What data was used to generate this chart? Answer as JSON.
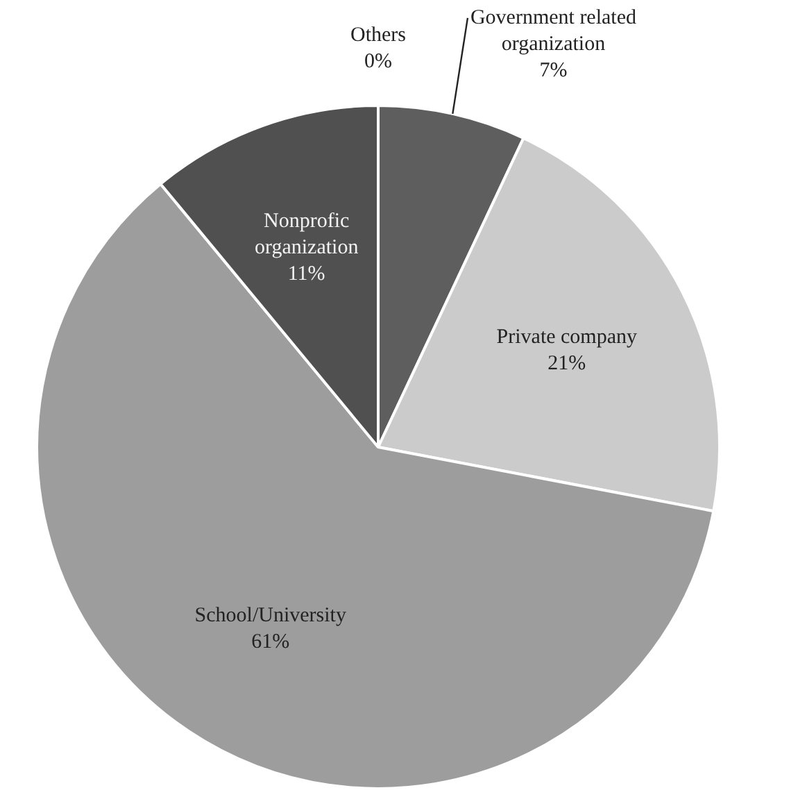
{
  "chart_data": {
    "type": "pie",
    "categories": [
      "Others",
      "Government related organization",
      "Private company",
      "School/University",
      "Nonprofic organization"
    ],
    "values": [
      0,
      7,
      21,
      61,
      11
    ],
    "colors": [
      "#8a8a8a",
      "#5e5e5e",
      "#cbcbcb",
      "#9d9d9d",
      "#505050"
    ],
    "value_labels": [
      "0%",
      "7%",
      "21%",
      "61%",
      "11%"
    ],
    "legend": false
  }
}
